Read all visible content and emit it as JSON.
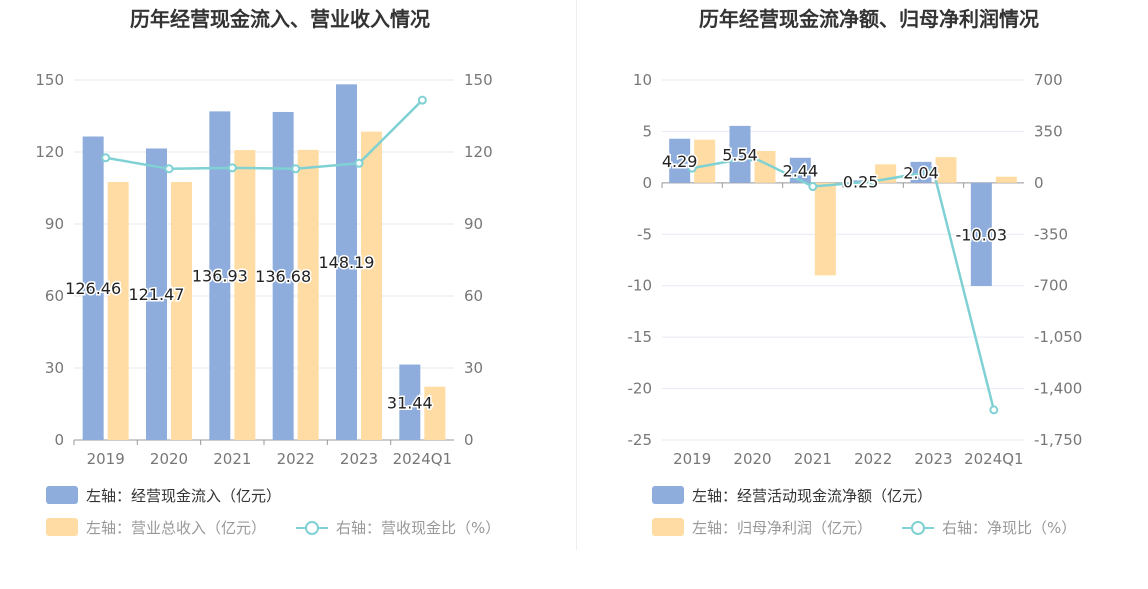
{
  "colors": {
    "bar_primary": "#8eaddd",
    "bar_secondary": "#ffdca3",
    "line": "#7fd1d3",
    "title": "#333333",
    "axis_text": "#777777",
    "grid": "#e6e9f2",
    "label_text": "#222222"
  },
  "chart_data": [
    {
      "type": "bar",
      "title": "历年经营现金流入、营业收入情况",
      "categories": [
        "2019",
        "2020",
        "2021",
        "2022",
        "2023",
        "2024Q1"
      ],
      "left_axis": {
        "ylim": [
          0,
          150
        ],
        "ticks": [
          "0",
          "30",
          "60",
          "90",
          "120",
          "150"
        ]
      },
      "right_axis": {
        "ylim": [
          0,
          150
        ],
        "ticks": [
          "0",
          "30",
          "60",
          "90",
          "120",
          "150"
        ]
      },
      "grid": true,
      "legend_placement": "bottom",
      "series": [
        {
          "name": "左轴：经营现金流入（亿元）",
          "kind": "bar",
          "axis": "left",
          "values": [
            126.46,
            121.47,
            136.93,
            136.68,
            148.19,
            31.44
          ],
          "labels": [
            "126.46",
            "121.47",
            "136.93",
            "136.68",
            "148.19",
            "31.44"
          ]
        },
        {
          "name": "左轴：营业总收入（亿元）",
          "kind": "bar",
          "axis": "left",
          "values": [
            107.5,
            107.5,
            120.8,
            120.9,
            128.5,
            22.2
          ]
        },
        {
          "name": "右轴：营收现金比（%）",
          "kind": "line",
          "axis": "right",
          "values": [
            117.6,
            113.0,
            113.4,
            113.0,
            115.3,
            141.6
          ]
        }
      ]
    },
    {
      "type": "bar",
      "title": "历年经营现金流净额、归母净利润情况",
      "categories": [
        "2019",
        "2020",
        "2021",
        "2022",
        "2023",
        "2024Q1"
      ],
      "left_axis": {
        "ylim": [
          -25,
          10
        ],
        "ticks": [
          "-25",
          "-20",
          "-15",
          "-10",
          "-5",
          "0",
          "5",
          "10"
        ]
      },
      "right_axis": {
        "ylim": [
          -1750,
          700
        ],
        "ticks": [
          "-1,750",
          "-1,400",
          "-1,050",
          "-700",
          "-350",
          "0",
          "350",
          "700"
        ]
      },
      "grid": true,
      "legend_placement": "bottom",
      "series": [
        {
          "name": "左轴：经营活动现金流净额（亿元）",
          "kind": "bar",
          "axis": "left",
          "values": [
            4.29,
            5.54,
            2.44,
            0.25,
            2.04,
            -10.03
          ],
          "labels": [
            "4.29",
            "5.54",
            "2.44",
            "0.25",
            "2.04",
            "-10.03"
          ]
        },
        {
          "name": "左轴：归母净利润（亿元）",
          "kind": "bar",
          "axis": "left",
          "values": [
            4.2,
            3.1,
            -9.0,
            1.8,
            2.5,
            0.6
          ]
        },
        {
          "name": "右轴：净现比（%）",
          "kind": "line",
          "axis": "right",
          "values": [
            100,
            175,
            -25,
            10,
            80,
            -1545
          ]
        }
      ]
    }
  ]
}
